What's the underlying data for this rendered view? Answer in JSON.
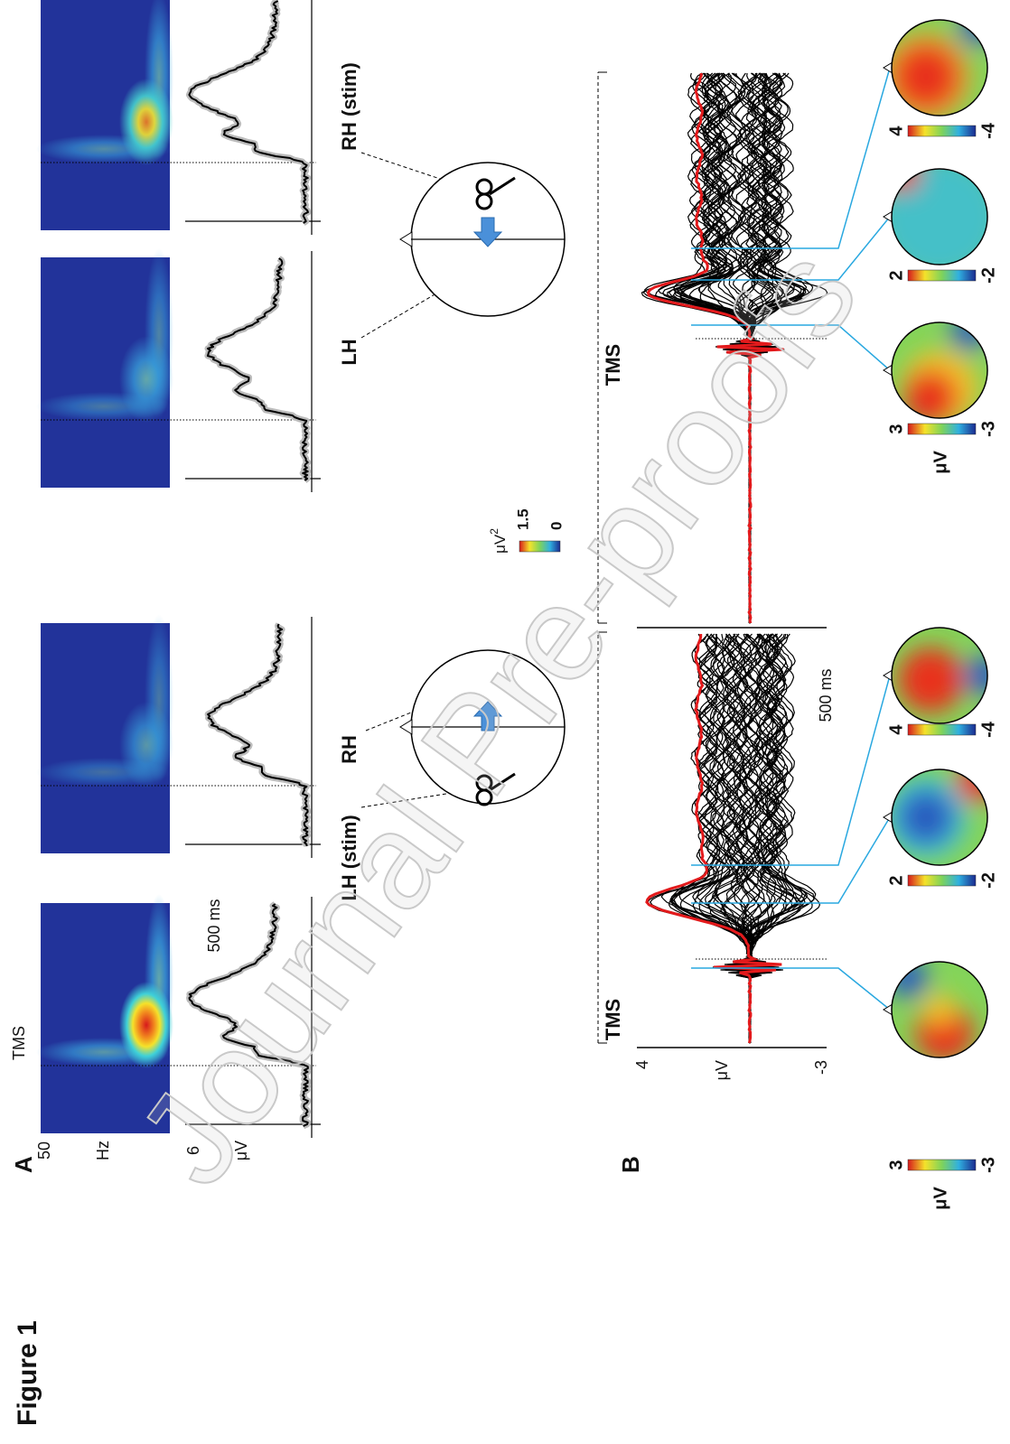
{
  "figure_label": "Figure 1",
  "watermark": "Journal Pre-proofs",
  "panel_a": {
    "label": "A",
    "tms": "TMS",
    "freq_top": "50",
    "freq_unit": "Hz",
    "amp_top": "6",
    "amp_unit": "μV",
    "time_scale": "500 ms",
    "colorbar": {
      "unit": "μV",
      "unit_power": "2",
      "max": "1.5",
      "min": "0"
    },
    "left_head": {
      "left": "LH (stim)",
      "right": "RH"
    },
    "right_head": {
      "left": "LH",
      "right": "RH (stim)"
    }
  },
  "panel_b": {
    "label": "B",
    "tms_left": "TMS",
    "tms_right": "TMS",
    "time_scale": "500 ms",
    "amp_top": "4",
    "amp_unit": "μV",
    "amp_bottom": "-3",
    "topo_unit_left": "μV",
    "topo_unit_right": "μV",
    "left_scales": [
      [
        "3",
        "-3"
      ],
      [
        "2",
        "-2"
      ],
      [
        "4",
        "-4"
      ]
    ],
    "right_scales": [
      [
        "3",
        "-3"
      ],
      [
        "2",
        "-2"
      ],
      [
        "4",
        "-4"
      ]
    ]
  }
}
